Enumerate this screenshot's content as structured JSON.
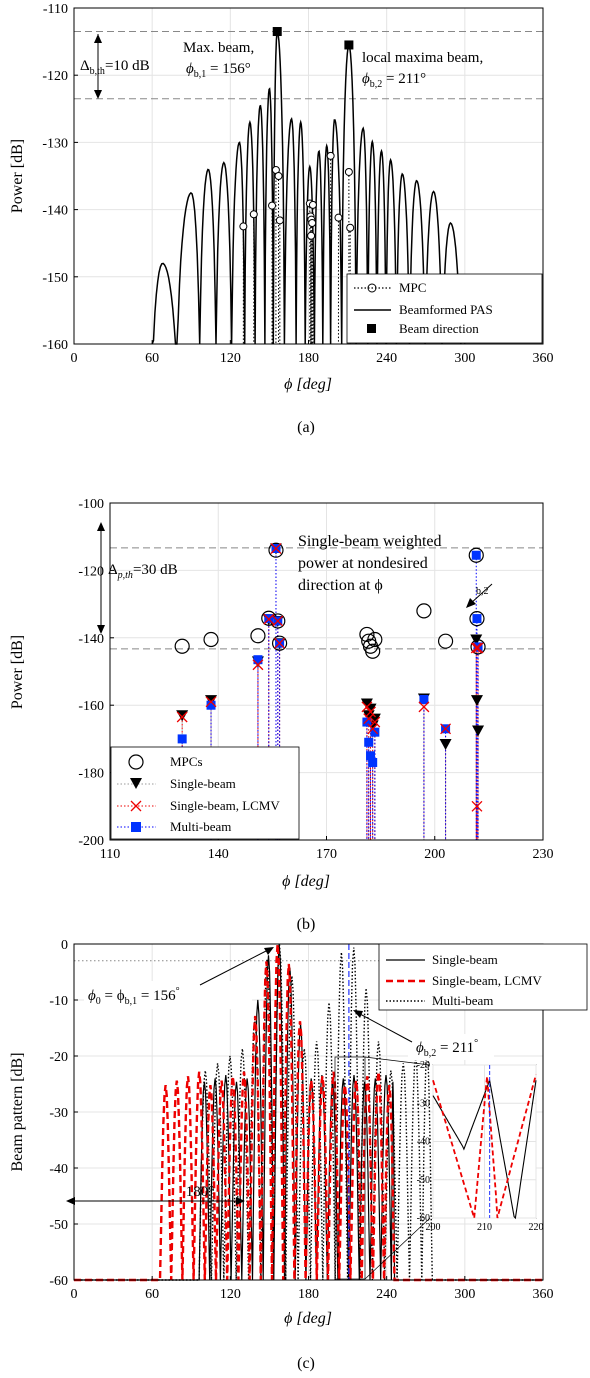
{
  "chart_data": [
    {
      "type": "line",
      "panel_label": "(a)",
      "xlabel": "ϕ [deg]",
      "ylabel": "Power [dB]",
      "xlim": [
        0,
        360
      ],
      "ylim": [
        -160,
        -110
      ],
      "xticks": [
        "0",
        "60",
        "120",
        "180",
        "240",
        "300",
        "360"
      ],
      "yticks": [
        "-110",
        "-120",
        "-130",
        "-140",
        "-150",
        "-160"
      ],
      "grid": true,
      "legend_position": "bottom-right",
      "legend": [
        "MPC",
        "Beamformed PAS",
        "Beam direction"
      ],
      "reference_lines_db": [
        -113.5,
        -123.5
      ],
      "annotations": {
        "delta_prefix": "Δ",
        "delta_sub": "b,th",
        "delta_value": "=10 dB",
        "max_beam_line1": "Max. beam,",
        "max_beam_phi": "ϕ",
        "max_beam_sub": "b,1",
        "max_beam_value": " = 156°",
        "local_line1": "local maxima beam,",
        "local_phi": "ϕ",
        "local_sub": "b,2",
        "local_value": " = 211°"
      },
      "mpcs": [
        {
          "phi": 130,
          "power": -142.5
        },
        {
          "phi": 138,
          "power": -140.7
        },
        {
          "phi": 152,
          "power": -139.4
        },
        {
          "phi": 155,
          "power": -134.1
        },
        {
          "phi": 157,
          "power": -135.0
        },
        {
          "phi": 158,
          "power": -141.6
        },
        {
          "phi": 181,
          "power": -139.1
        },
        {
          "phi": 181.6,
          "power": -141.0
        },
        {
          "phi": 182.2,
          "power": -141.5
        },
        {
          "phi": 182.8,
          "power": -142.0
        },
        {
          "phi": 183.4,
          "power": -139.3
        },
        {
          "phi": 182,
          "power": -143.9
        },
        {
          "phi": 197,
          "power": -132.0
        },
        {
          "phi": 203,
          "power": -141.2
        },
        {
          "phi": 211,
          "power": -134.4
        },
        {
          "phi": 212,
          "power": -142.7
        }
      ],
      "beam_directions": [
        {
          "phi": 156,
          "power": -113.5
        },
        {
          "phi": 211,
          "power": -115.5
        }
      ],
      "beamformed_pas": {
        "lobe_centers": [
          68,
          90,
          103,
          115,
          127,
          135,
          143,
          150,
          167,
          174,
          181,
          188,
          194,
          200,
          222,
          229,
          236,
          243,
          252,
          263,
          276,
          289
        ],
        "lobe_peaks": [
          -148,
          -137.5,
          -134,
          -133,
          -130,
          -127,
          -124.5,
          -122,
          -126.5,
          -127,
          -133.6,
          -131.3,
          -130.5,
          -126.6,
          -127.9,
          -129.9,
          -131.3,
          -132.6,
          -134.7,
          -135.7,
          -137.3,
          -142
        ],
        "main_lobes": [
          {
            "center": 156,
            "peak": -113.5
          },
          {
            "center": 211,
            "peak": -115.5
          }
        ]
      }
    },
    {
      "type": "scatter",
      "panel_label": "(b)",
      "xlabel": "ϕ [deg]",
      "ylabel": "Power [dB]",
      "xlim": [
        110,
        230
      ],
      "ylim": [
        -200,
        -100
      ],
      "xticks": [
        "110",
        "140",
        "170",
        "200",
        "230"
      ],
      "yticks": [
        "-100",
        "-120",
        "-140",
        "-160",
        "-180",
        "-200"
      ],
      "grid": true,
      "legend_position": "bottom-left",
      "legend": [
        "MPCs",
        "Single-beam",
        "Single-beam, LCMV",
        "Multi-beam"
      ],
      "reference_lines_db": [
        -113.3,
        -143.3
      ],
      "annotations": {
        "delta_prefix": "Δ",
        "delta_sub": "p,th",
        "delta_value": "=30 dB",
        "note_line1": "Single-beam weighted",
        "note_line2": "power at nondesired",
        "note_line3": "direction at ϕ",
        "note_sub": "b,2"
      },
      "series": [
        {
          "name": "MPCs",
          "points": [
            [
              130,
              -142.5
            ],
            [
              138,
              -140.5
            ],
            [
              151,
              -139.4
            ],
            [
              154,
              -134.2
            ],
            [
              156,
              -114
            ],
            [
              156.5,
              -135
            ],
            [
              157,
              -141.6
            ],
            [
              181.2,
              -139
            ],
            [
              181.7,
              -141
            ],
            [
              182.2,
              -142.5
            ],
            [
              182.8,
              -144
            ],
            [
              183.4,
              -140.5
            ],
            [
              197,
              -132
            ],
            [
              203,
              -141
            ],
            [
              211.5,
              -115.5
            ],
            [
              211.7,
              -134.3
            ],
            [
              212,
              -142.7
            ]
          ]
        },
        {
          "name": "Single-beam",
          "points": [
            [
              130,
              -163
            ],
            [
              138,
              -158.5
            ],
            [
              151,
              -147
            ],
            [
              154,
              -134.5
            ],
            [
              156,
              -113.5
            ],
            [
              156.5,
              -135
            ],
            [
              157,
              -141.6
            ],
            [
              181.2,
              -159.5
            ],
            [
              181.7,
              -163
            ],
            [
              182.2,
              -161
            ],
            [
              182.8,
              -166
            ],
            [
              183.4,
              -164
            ],
            [
              197,
              -158
            ],
            [
              203,
              -171.5
            ],
            [
              211.5,
              -140.5
            ],
            [
              211.7,
              -158.5
            ],
            [
              212,
              -167.5
            ]
          ]
        },
        {
          "name": "Single-beam, LCMV",
          "points": [
            [
              130,
              -163.5
            ],
            [
              138,
              -159
            ],
            [
              151,
              -148
            ],
            [
              154,
              -134.5
            ],
            [
              156,
              -113.5
            ],
            [
              156.5,
              -135
            ],
            [
              157,
              -141.6
            ],
            [
              181.2,
              -160.5
            ],
            [
              181.7,
              -164
            ],
            [
              182.2,
              -162
            ],
            [
              182.8,
              -167
            ],
            [
              183.4,
              -165
            ],
            [
              197,
              -160.5
            ],
            [
              203,
              -167
            ],
            [
              211.5,
              -143
            ],
            [
              211.7,
              -190
            ],
            [
              212,
              -143
            ]
          ]
        },
        {
          "name": "Multi-beam",
          "points": [
            [
              130,
              -170
            ],
            [
              138,
              -160
            ],
            [
              151,
              -146.5
            ],
            [
              154,
              -134.3
            ],
            [
              156,
              -113.5
            ],
            [
              156.5,
              -135
            ],
            [
              157,
              -141.6
            ],
            [
              181.2,
              -165
            ],
            [
              181.7,
              -171
            ],
            [
              182.2,
              -175
            ],
            [
              182.8,
              -177
            ],
            [
              183.4,
              -168
            ],
            [
              197,
              -158.3
            ],
            [
              203,
              -167
            ],
            [
              211.5,
              -115.5
            ],
            [
              211.7,
              -134.3
            ],
            [
              212,
              -142.7
            ]
          ]
        }
      ]
    },
    {
      "type": "line",
      "panel_label": "(c)",
      "xlabel": "ϕ [deg]",
      "ylabel": "Beam pattern [dB]",
      "xlim": [
        0,
        360
      ],
      "ylim": [
        -60,
        0
      ],
      "xticks": [
        "0",
        "60",
        "120",
        "180",
        "240",
        "300",
        "360"
      ],
      "yticks": [
        "0",
        "-10",
        "-20",
        "-30",
        "-40",
        "-50",
        "-60"
      ],
      "grid": true,
      "legend_position": "top-right",
      "legend": [
        "Single-beam",
        "Single-beam, LCMV",
        "Multi-beam"
      ],
      "reference_lines_db": [
        -3
      ],
      "annotations": {
        "phi0_label": "ϕ",
        "phi0_sub": "0",
        "phi0_eq": " = ϕ",
        "phi0_sub2": "b,1",
        "phi0_value": " = 156",
        "phi0_deg": "°",
        "phib2_label": "ϕ",
        "phib2_sub": "b,2",
        "phib2_value": " = 211",
        "phib2_deg": "°",
        "span": "180°"
      },
      "inset": {
        "xlim": [
          200,
          220
        ],
        "ylim": [
          -60,
          -20
        ],
        "xticks": [
          "200",
          "210",
          "220"
        ],
        "yticks": [
          "-20",
          "-30",
          "-40",
          "-50",
          "-60"
        ]
      },
      "series": [
        {
          "name": "Single-beam",
          "main_lobe": {
            "center": 156,
            "peak": 0
          },
          "sidelobe_level_db": -24,
          "support": [
            66,
            246
          ]
        },
        {
          "name": "Single-beam, LCMV",
          "main_lobe": {
            "center": 156,
            "peak": 0
          },
          "sidelobe_level_db": -24,
          "support": [
            66,
            246
          ]
        },
        {
          "name": "Multi-beam",
          "main_lobes": [
            {
              "center": 156,
              "peak": 0
            },
            {
              "center": 211,
              "peak": 0
            }
          ],
          "sidelobe_level_db": -20,
          "support": [
            96,
            275
          ]
        }
      ]
    }
  ]
}
